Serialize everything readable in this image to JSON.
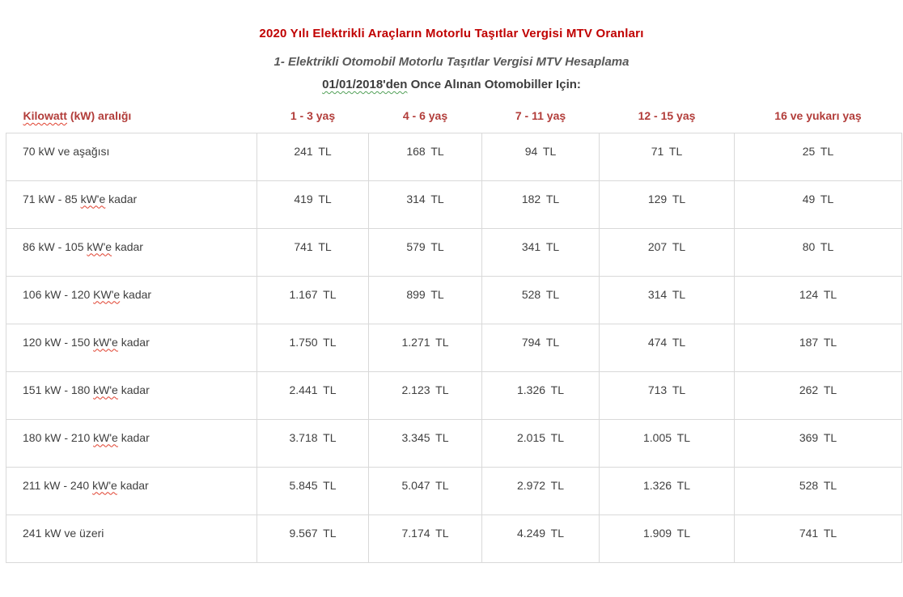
{
  "page": {
    "title": "2020 Yılı Elektrikli Araçların Motorlu Taşıtlar Vergisi MTV Oranları",
    "subtitle": "1- Elektrikli Otomobil Motorlu Taşıtlar Vergisi MTV Hesaplama",
    "section_heading": {
      "underlined_part": "01/01/2018'den",
      "rest_part": " Once Alınan Otomobiller Için:"
    }
  },
  "colors": {
    "title_red": "#c00000",
    "header_red": "#b23d3a",
    "subtitle_gray": "#595959",
    "body_text": "#404040",
    "table_border": "#d9d9d9",
    "spellcheck_red": "#e0402e",
    "grammar_green": "#52a058"
  },
  "table": {
    "header": {
      "kw_label_wavy": "Kilowatt",
      "kw_label_rest": " (kW) aralığı",
      "age_columns": [
        "1 - 3 yaş",
        "4 - 6 yaş",
        "7 - 11 yaş",
        "12 - 15 yaş",
        "16 ve yukarı yaş"
      ]
    },
    "rows": [
      {
        "label_parts": [
          {
            "t": "70 kW ve aşağısı",
            "wavy": false
          }
        ],
        "values": [
          "241 TL",
          "168 TL",
          "94 TL",
          "71 TL",
          "25 TL"
        ]
      },
      {
        "label_parts": [
          {
            "t": "71 kW - 85 ",
            "wavy": false
          },
          {
            "t": "kW'e",
            "wavy": true
          },
          {
            "t": " kadar",
            "wavy": false
          }
        ],
        "values": [
          "419 TL",
          "314 TL",
          "182 TL",
          "129 TL",
          "49 TL"
        ]
      },
      {
        "label_parts": [
          {
            "t": "86 kW - 105 ",
            "wavy": false
          },
          {
            "t": "kW'e",
            "wavy": true
          },
          {
            "t": " kadar",
            "wavy": false
          }
        ],
        "values": [
          "741 TL",
          "579 TL",
          "341 TL",
          "207 TL",
          "80 TL"
        ]
      },
      {
        "label_parts": [
          {
            "t": "106 kW - 120 ",
            "wavy": false
          },
          {
            "t": "KW'e",
            "wavy": true
          },
          {
            "t": " kadar",
            "wavy": false
          }
        ],
        "values": [
          "1.167 TL",
          "899 TL",
          "528 TL",
          "314 TL",
          "124 TL"
        ]
      },
      {
        "label_parts": [
          {
            "t": "120 kW - 150 ",
            "wavy": false
          },
          {
            "t": "kW'e",
            "wavy": true
          },
          {
            "t": " kadar",
            "wavy": false
          }
        ],
        "values": [
          "1.750 TL",
          "1.271 TL",
          "794 TL",
          "474 TL",
          "187 TL"
        ]
      },
      {
        "label_parts": [
          {
            "t": "151 kW - 180 ",
            "wavy": false
          },
          {
            "t": "kW'e",
            "wavy": true
          },
          {
            "t": " kadar",
            "wavy": false
          }
        ],
        "values": [
          "2.441 TL",
          "2.123 TL",
          "1.326 TL",
          "713 TL",
          "262 TL"
        ]
      },
      {
        "label_parts": [
          {
            "t": "180 kW - 210 ",
            "wavy": false
          },
          {
            "t": "kW'e",
            "wavy": true
          },
          {
            "t": " kadar",
            "wavy": false
          }
        ],
        "values": [
          "3.718 TL",
          "3.345 TL",
          "2.015 TL",
          "1.005 TL",
          "369 TL"
        ]
      },
      {
        "label_parts": [
          {
            "t": "211 kW - 240 ",
            "wavy": false
          },
          {
            "t": "kW'e",
            "wavy": true
          },
          {
            "t": " kadar",
            "wavy": false
          }
        ],
        "values": [
          "5.845 TL",
          "5.047 TL",
          "2.972 TL",
          "1.326 TL",
          "528 TL"
        ]
      },
      {
        "label_parts": [
          {
            "t": "241 kW ve üzeri",
            "wavy": false
          }
        ],
        "values": [
          "9.567 TL",
          "7.174 TL",
          "4.249 TL",
          "1.909 TL",
          "741 TL"
        ]
      }
    ]
  }
}
